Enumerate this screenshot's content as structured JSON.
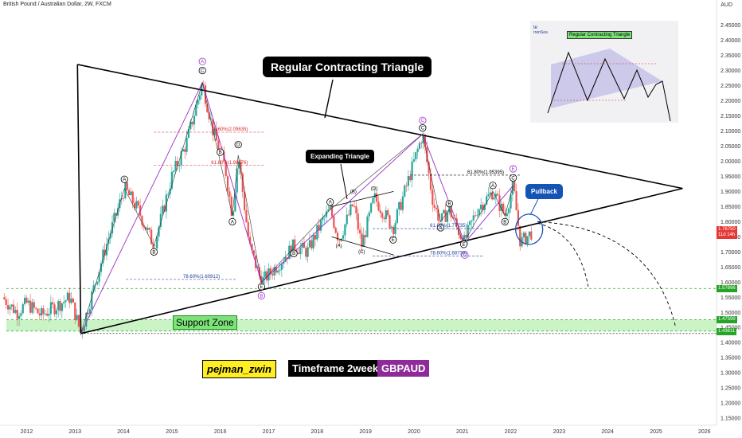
{
  "header": {
    "title": "British Pound / Australian Dollar, 2W, FXCM",
    "currency": "AUD"
  },
  "annotations": {
    "main_pattern": "Regular Contracting Triangle",
    "sub_pattern": "Expanding Triangle",
    "pullback": "Pullback",
    "support_zone": "Support Zone",
    "inset_title": "Regular Contracting Triangle",
    "fib_levels": [
      {
        "text": "78.60%(2.09635)",
        "date": 2015.78,
        "price": 2.096,
        "color": "#d62728"
      },
      {
        "text": "61.80%(1.98576)",
        "date": 2015.78,
        "price": 1.986,
        "color": "#d62728"
      },
      {
        "text": "78.60%(1.60912)",
        "date": 2015.2,
        "price": 1.609,
        "color": "#1f3b99"
      },
      {
        "text": "61.80%(1.95395)",
        "date": 2021.07,
        "price": 1.954,
        "color": "#000000"
      },
      {
        "text": "61.80%(1.77735)",
        "date": 2020.3,
        "price": 1.777,
        "color": "#1f3b99"
      },
      {
        "text": "78.60%(1.68730)",
        "date": 2020.3,
        "price": 1.687,
        "color": "#1f3b99"
      }
    ],
    "wave_labels": [
      {
        "text": "A",
        "date": 2015.63,
        "price": 2.33,
        "style": "purple"
      },
      {
        "text": "C",
        "date": 2015.63,
        "price": 2.3,
        "style": "dark"
      },
      {
        "text": "B",
        "date": 2016.85,
        "price": 1.555,
        "style": "purple"
      },
      {
        "text": "E",
        "date": 2016.85,
        "price": 1.585,
        "style": "dark"
      },
      {
        "text": "C",
        "date": 2020.18,
        "price": 2.135,
        "style": "purple"
      },
      {
        "text": "C",
        "date": 2020.18,
        "price": 2.11,
        "style": "dark"
      },
      {
        "text": "D",
        "date": 2021.05,
        "price": 1.69,
        "style": "purple"
      },
      {
        "text": "E",
        "date": 2022.05,
        "price": 1.975,
        "style": "purple"
      },
      {
        "text": "C",
        "date": 2022.05,
        "price": 1.945,
        "style": "dark"
      },
      {
        "text": "A",
        "date": 2014.02,
        "price": 1.94,
        "style": "dark"
      },
      {
        "text": "B",
        "date": 2014.63,
        "price": 1.7,
        "style": "dark"
      },
      {
        "text": "D",
        "date": 2016.37,
        "price": 2.055,
        "style": "dark"
      },
      {
        "text": "B",
        "date": 2016.0,
        "price": 2.03,
        "style": "dark"
      },
      {
        "text": "A",
        "date": 2016.25,
        "price": 1.8,
        "style": "dark"
      },
      {
        "text": "A",
        "date": 2018.27,
        "price": 1.865,
        "style": "dark"
      },
      {
        "text": "B",
        "date": 2017.52,
        "price": 1.695,
        "style": "dark"
      },
      {
        "text": "(B)",
        "date": 2018.75,
        "price": 1.895,
        "style": "text"
      },
      {
        "text": "(D)",
        "date": 2019.18,
        "price": 1.905,
        "style": "text"
      },
      {
        "text": "(A)",
        "date": 2018.45,
        "price": 1.715,
        "style": "text"
      },
      {
        "text": "(C)",
        "date": 2018.92,
        "price": 1.695,
        "style": "text"
      },
      {
        "text": "E",
        "date": 2019.57,
        "price": 1.74,
        "style": "dark"
      },
      {
        "text": "B",
        "date": 2020.73,
        "price": 1.86,
        "style": "dark"
      },
      {
        "text": "A",
        "date": 2020.55,
        "price": 1.78,
        "style": "dark"
      },
      {
        "text": "E",
        "date": 2021.03,
        "price": 1.725,
        "style": "dark"
      },
      {
        "text": "A",
        "date": 2021.63,
        "price": 1.92,
        "style": "dark"
      },
      {
        "text": "B",
        "date": 2021.88,
        "price": 1.8,
        "style": "dark"
      }
    ]
  },
  "tags": {
    "author": "pejman_zwin",
    "timeframe": "Timeframe 2weeks",
    "symbol": "GBPAUD"
  },
  "price_badges": [
    {
      "value": "1.76750",
      "sub": "11d 14h",
      "price": 1.7675,
      "color": "#e53935"
    },
    {
      "value": "1.57896",
      "price": 1.57896,
      "color": "#27a327"
    },
    {
      "value": "1.47599",
      "price": 1.47599,
      "color": "#27a327"
    },
    {
      "value": "1.43811",
      "price": 1.43811,
      "color": "#27a327"
    }
  ],
  "chart_data": {
    "type": "candlestick",
    "title": "British Pound / Australian Dollar, 2W, FXCM",
    "xlabel": "",
    "ylabel": "AUD",
    "xlim": [
      2011.45,
      2026.25
    ],
    "ylim": [
      1.1266,
      2.5333
    ],
    "x_ticks": [
      "2012",
      "2013",
      "2014",
      "2015",
      "2016",
      "2017",
      "2018",
      "2019",
      "2020",
      "2021",
      "2022",
      "2023",
      "2024",
      "2025",
      "2026"
    ],
    "x_tick_values": [
      2012,
      2013,
      2014,
      2015,
      2016,
      2017,
      2018,
      2019,
      2020,
      2021,
      2022,
      2023,
      2024,
      2025,
      2026
    ],
    "y_ticks": [
      "2.45000",
      "2.40000",
      "2.35000",
      "2.30000",
      "2.25000",
      "2.20000",
      "2.15000",
      "2.10000",
      "2.05000",
      "2.00000",
      "1.95000",
      "1.90000",
      "1.85000",
      "1.80000",
      "1.75000",
      "1.70000",
      "1.65000",
      "1.60000",
      "1.55000",
      "1.50000",
      "1.45000",
      "1.40000",
      "1.35000",
      "1.30000",
      "1.25000",
      "1.20000",
      "1.15000"
    ],
    "price_path": [
      {
        "date": 2011.5,
        "price": 1.55
      },
      {
        "date": 2011.8,
        "price": 1.5
      },
      {
        "date": 2012.0,
        "price": 1.53
      },
      {
        "date": 2012.3,
        "price": 1.49
      },
      {
        "date": 2012.6,
        "price": 1.52
      },
      {
        "date": 2012.9,
        "price": 1.55
      },
      {
        "date": 2013.12,
        "price": 1.43
      },
      {
        "date": 2013.6,
        "price": 1.7
      },
      {
        "date": 2014.02,
        "price": 1.91
      },
      {
        "date": 2014.3,
        "price": 1.84
      },
      {
        "date": 2014.63,
        "price": 1.72
      },
      {
        "date": 2015.0,
        "price": 1.95
      },
      {
        "date": 2015.3,
        "price": 2.06
      },
      {
        "date": 2015.63,
        "price": 2.26
      },
      {
        "date": 2015.85,
        "price": 2.1
      },
      {
        "date": 2016.1,
        "price": 1.98
      },
      {
        "date": 2016.25,
        "price": 1.82
      },
      {
        "date": 2016.37,
        "price": 2.02
      },
      {
        "date": 2016.6,
        "price": 1.72
      },
      {
        "date": 2016.85,
        "price": 1.6
      },
      {
        "date": 2017.2,
        "price": 1.66
      },
      {
        "date": 2017.52,
        "price": 1.72
      },
      {
        "date": 2017.8,
        "price": 1.7
      },
      {
        "date": 2018.1,
        "price": 1.8
      },
      {
        "date": 2018.27,
        "price": 1.84
      },
      {
        "date": 2018.45,
        "price": 1.74
      },
      {
        "date": 2018.75,
        "price": 1.86
      },
      {
        "date": 2018.92,
        "price": 1.72
      },
      {
        "date": 2019.18,
        "price": 1.88
      },
      {
        "date": 2019.57,
        "price": 1.78
      },
      {
        "date": 2019.85,
        "price": 1.92
      },
      {
        "date": 2020.18,
        "price": 2.09
      },
      {
        "date": 2020.4,
        "price": 1.86
      },
      {
        "date": 2020.55,
        "price": 1.8
      },
      {
        "date": 2020.73,
        "price": 1.84
      },
      {
        "date": 2021.03,
        "price": 1.73
      },
      {
        "date": 2021.3,
        "price": 1.84
      },
      {
        "date": 2021.63,
        "price": 1.9
      },
      {
        "date": 2021.88,
        "price": 1.82
      },
      {
        "date": 2022.05,
        "price": 1.92
      },
      {
        "date": 2022.2,
        "price": 1.73
      },
      {
        "date": 2022.45,
        "price": 1.7675
      }
    ],
    "trendlines": [
      {
        "name": "triangle-upper",
        "from": {
          "date": 2013.05,
          "price": 2.32
        },
        "to": {
          "date": 2025.55,
          "price": 1.91
        }
      },
      {
        "name": "triangle-lower",
        "from": {
          "date": 2013.12,
          "price": 1.43
        },
        "to": {
          "date": 2025.55,
          "price": 1.91
        }
      },
      {
        "name": "triangle-left",
        "from": {
          "date": 2013.05,
          "price": 2.32
        },
        "to": {
          "date": 2013.12,
          "price": 1.43
        }
      }
    ],
    "zones": [
      {
        "name": "support-zone",
        "from_price": 1.43811,
        "to_price": 1.47599
      }
    ],
    "levels": [
      1.57896,
      1.47599,
      1.43811
    ]
  }
}
